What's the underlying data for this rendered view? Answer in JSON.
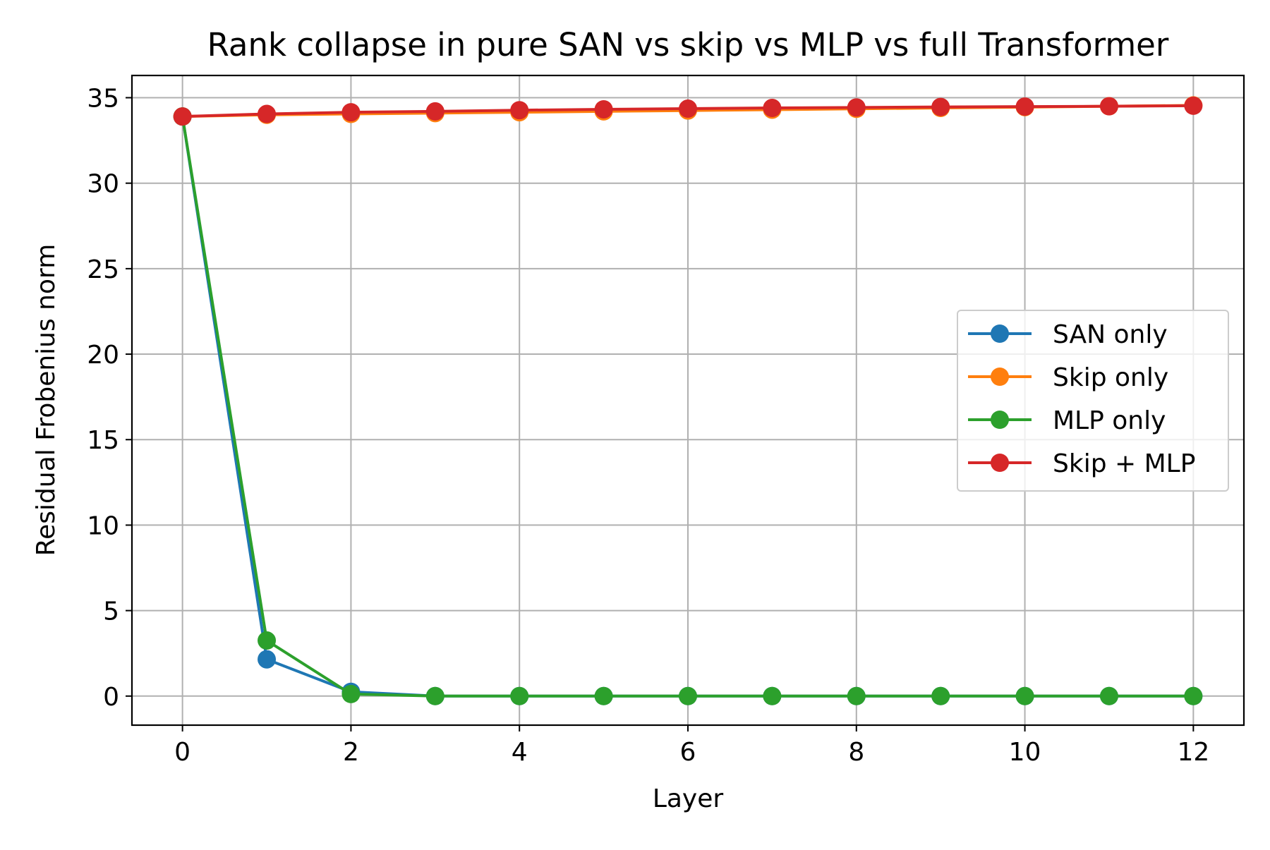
{
  "chart_data": {
    "type": "line",
    "title": "Rank collapse in pure SAN vs skip vs MLP vs full Transformer",
    "xlabel": "Layer",
    "ylabel": "Residual Frobenius norm",
    "x": [
      0,
      1,
      2,
      3,
      4,
      5,
      6,
      7,
      8,
      9,
      10,
      11,
      12
    ],
    "xlim": [
      -0.6,
      12.6
    ],
    "ylim": [
      -1.7,
      36.3
    ],
    "xticks": [
      0,
      2,
      4,
      6,
      8,
      10,
      12
    ],
    "yticks": [
      0,
      5,
      10,
      15,
      20,
      25,
      30,
      35
    ],
    "grid": true,
    "legend_position": "center-right",
    "series": [
      {
        "name": "SAN only",
        "color": "#1f77b4",
        "marker": "circle",
        "values": [
          33.9,
          2.15,
          0.25,
          0.0,
          0.0,
          0.0,
          0.0,
          0.0,
          0.0,
          0.0,
          0.0,
          0.0,
          0.0
        ]
      },
      {
        "name": "Skip only",
        "color": "#ff7f0e",
        "marker": "circle",
        "values": [
          33.9,
          34.0,
          34.05,
          34.1,
          34.15,
          34.2,
          34.25,
          34.3,
          34.35,
          34.4,
          34.45,
          34.5,
          34.55
        ]
      },
      {
        "name": "MLP only",
        "color": "#2ca02c",
        "marker": "circle",
        "values": [
          33.9,
          3.25,
          0.12,
          0.0,
          0.0,
          0.0,
          0.0,
          0.0,
          0.0,
          0.0,
          0.0,
          0.0,
          0.0
        ]
      },
      {
        "name": "Skip + MLP",
        "color": "#d62728",
        "marker": "circle",
        "values": [
          33.9,
          34.05,
          34.15,
          34.2,
          34.27,
          34.32,
          34.36,
          34.4,
          34.43,
          34.46,
          34.48,
          34.5,
          34.53
        ]
      }
    ]
  }
}
